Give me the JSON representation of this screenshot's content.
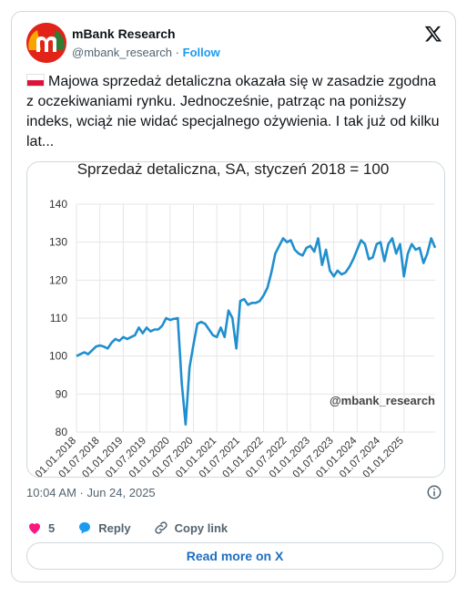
{
  "author": {
    "name": "mBank Research",
    "handle": "@mbank_research",
    "separator": "·",
    "follow_label": "Follow",
    "avatar_letter": "m"
  },
  "post": {
    "flag": "poland-flag",
    "text": "Majowa sprzedaż detaliczna okazała się w zasadzie zgodna z oczekiwaniami rynku. Jednocześnie, patrząc na poniższy indeks, wciąż nie widać specjalnego ożywienia. I tak już od kilku lat...",
    "timestamp": "10:04 AM · Jun 24, 2025"
  },
  "actions": {
    "likes": "5",
    "reply_label": "Reply",
    "copy_label": "Copy link",
    "read_more_label": "Read more on X"
  },
  "colors": {
    "like": "#f91880",
    "reply": "#1d9bf0",
    "line": "#1f8fcf",
    "link": "#1d6fc0"
  },
  "chart_data": {
    "type": "line",
    "title": "Sprzedaż detaliczna, SA, styczeń 2018 = 100",
    "watermark": "@mbank_research",
    "ylim": [
      80,
      140
    ],
    "yticks": [
      80,
      90,
      100,
      110,
      120,
      130,
      140
    ],
    "xlim": [
      "2018-01",
      "2025-05"
    ],
    "xtick_labels": [
      "01.01.2018",
      "01.07.2018",
      "01.01.2019",
      "01.07.2019",
      "01.01.2020",
      "01.07.2020",
      "01.01.2021",
      "01.07.2021",
      "01.01.2022",
      "01.07.2022",
      "01.01.2023",
      "01.07.2023",
      "01.01.2024",
      "01.07.2024",
      "01.01.2025"
    ],
    "grid": true,
    "series": [
      {
        "values": [
          100,
          100.5,
          101,
          100.5,
          101.5,
          102.5,
          102.8,
          102.5,
          102,
          103.5,
          104.5,
          104,
          105,
          104.5,
          105,
          105.5,
          107.5,
          106,
          107.5,
          106.5,
          107,
          107,
          108,
          110,
          109.5,
          109.8,
          110,
          93,
          82,
          97,
          103,
          108.5,
          109,
          108.5,
          107,
          105.5,
          105,
          107.5,
          105,
          112,
          110,
          102,
          114.5,
          115,
          113.5,
          114,
          114,
          114.5,
          116,
          118,
          122,
          127,
          129,
          131,
          130,
          130.5,
          128,
          127,
          126.5,
          128.5,
          129,
          127.5,
          131,
          124,
          128,
          122.5,
          121,
          122.5,
          121.5,
          122,
          123.5,
          125.5,
          128,
          130.5,
          129.5,
          125.5,
          126,
          129.5,
          130,
          125,
          129.5,
          131,
          127,
          129.5,
          121,
          127,
          129.5,
          128,
          128.5,
          124.5,
          127,
          131,
          128.5
        ]
      }
    ]
  }
}
